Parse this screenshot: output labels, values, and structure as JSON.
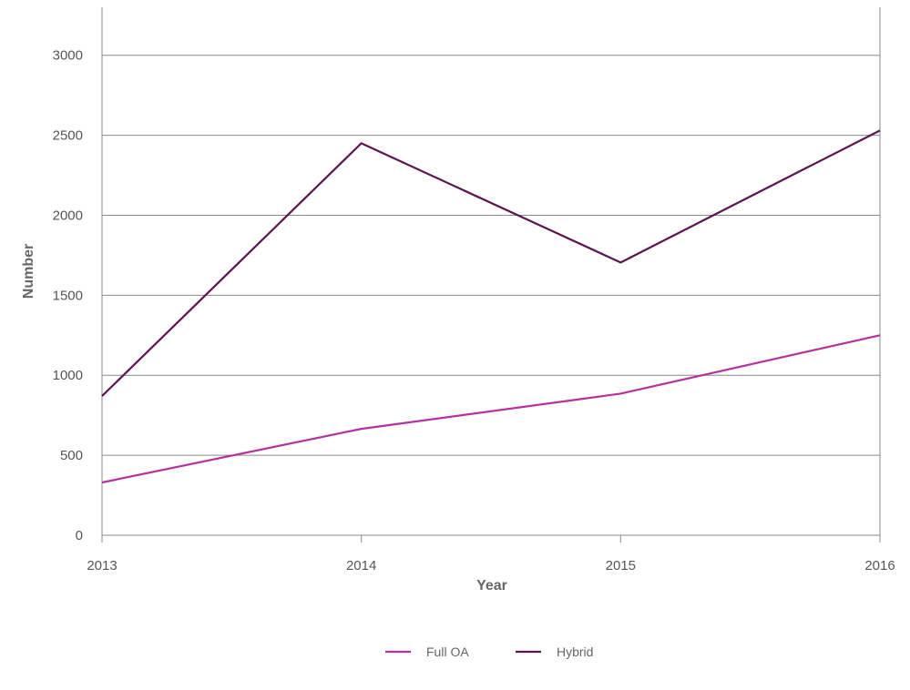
{
  "chart_data": {
    "type": "line",
    "title": "",
    "xlabel": "Year",
    "ylabel": "Number",
    "categories": [
      "2013",
      "2014",
      "2015",
      "2016"
    ],
    "yticks": [
      0,
      500,
      1000,
      1500,
      2000,
      2500,
      3000
    ],
    "ylim": [
      0,
      3300
    ],
    "grid": true,
    "legend_position": "bottom-center",
    "series": [
      {
        "name": "Full OA",
        "values": [
          330,
          665,
          885,
          1250
        ],
        "color": "#b5329e"
      },
      {
        "name": "Hybrid",
        "values": [
          870,
          2450,
          1705,
          2530
        ],
        "color": "#5b1551"
      }
    ]
  }
}
